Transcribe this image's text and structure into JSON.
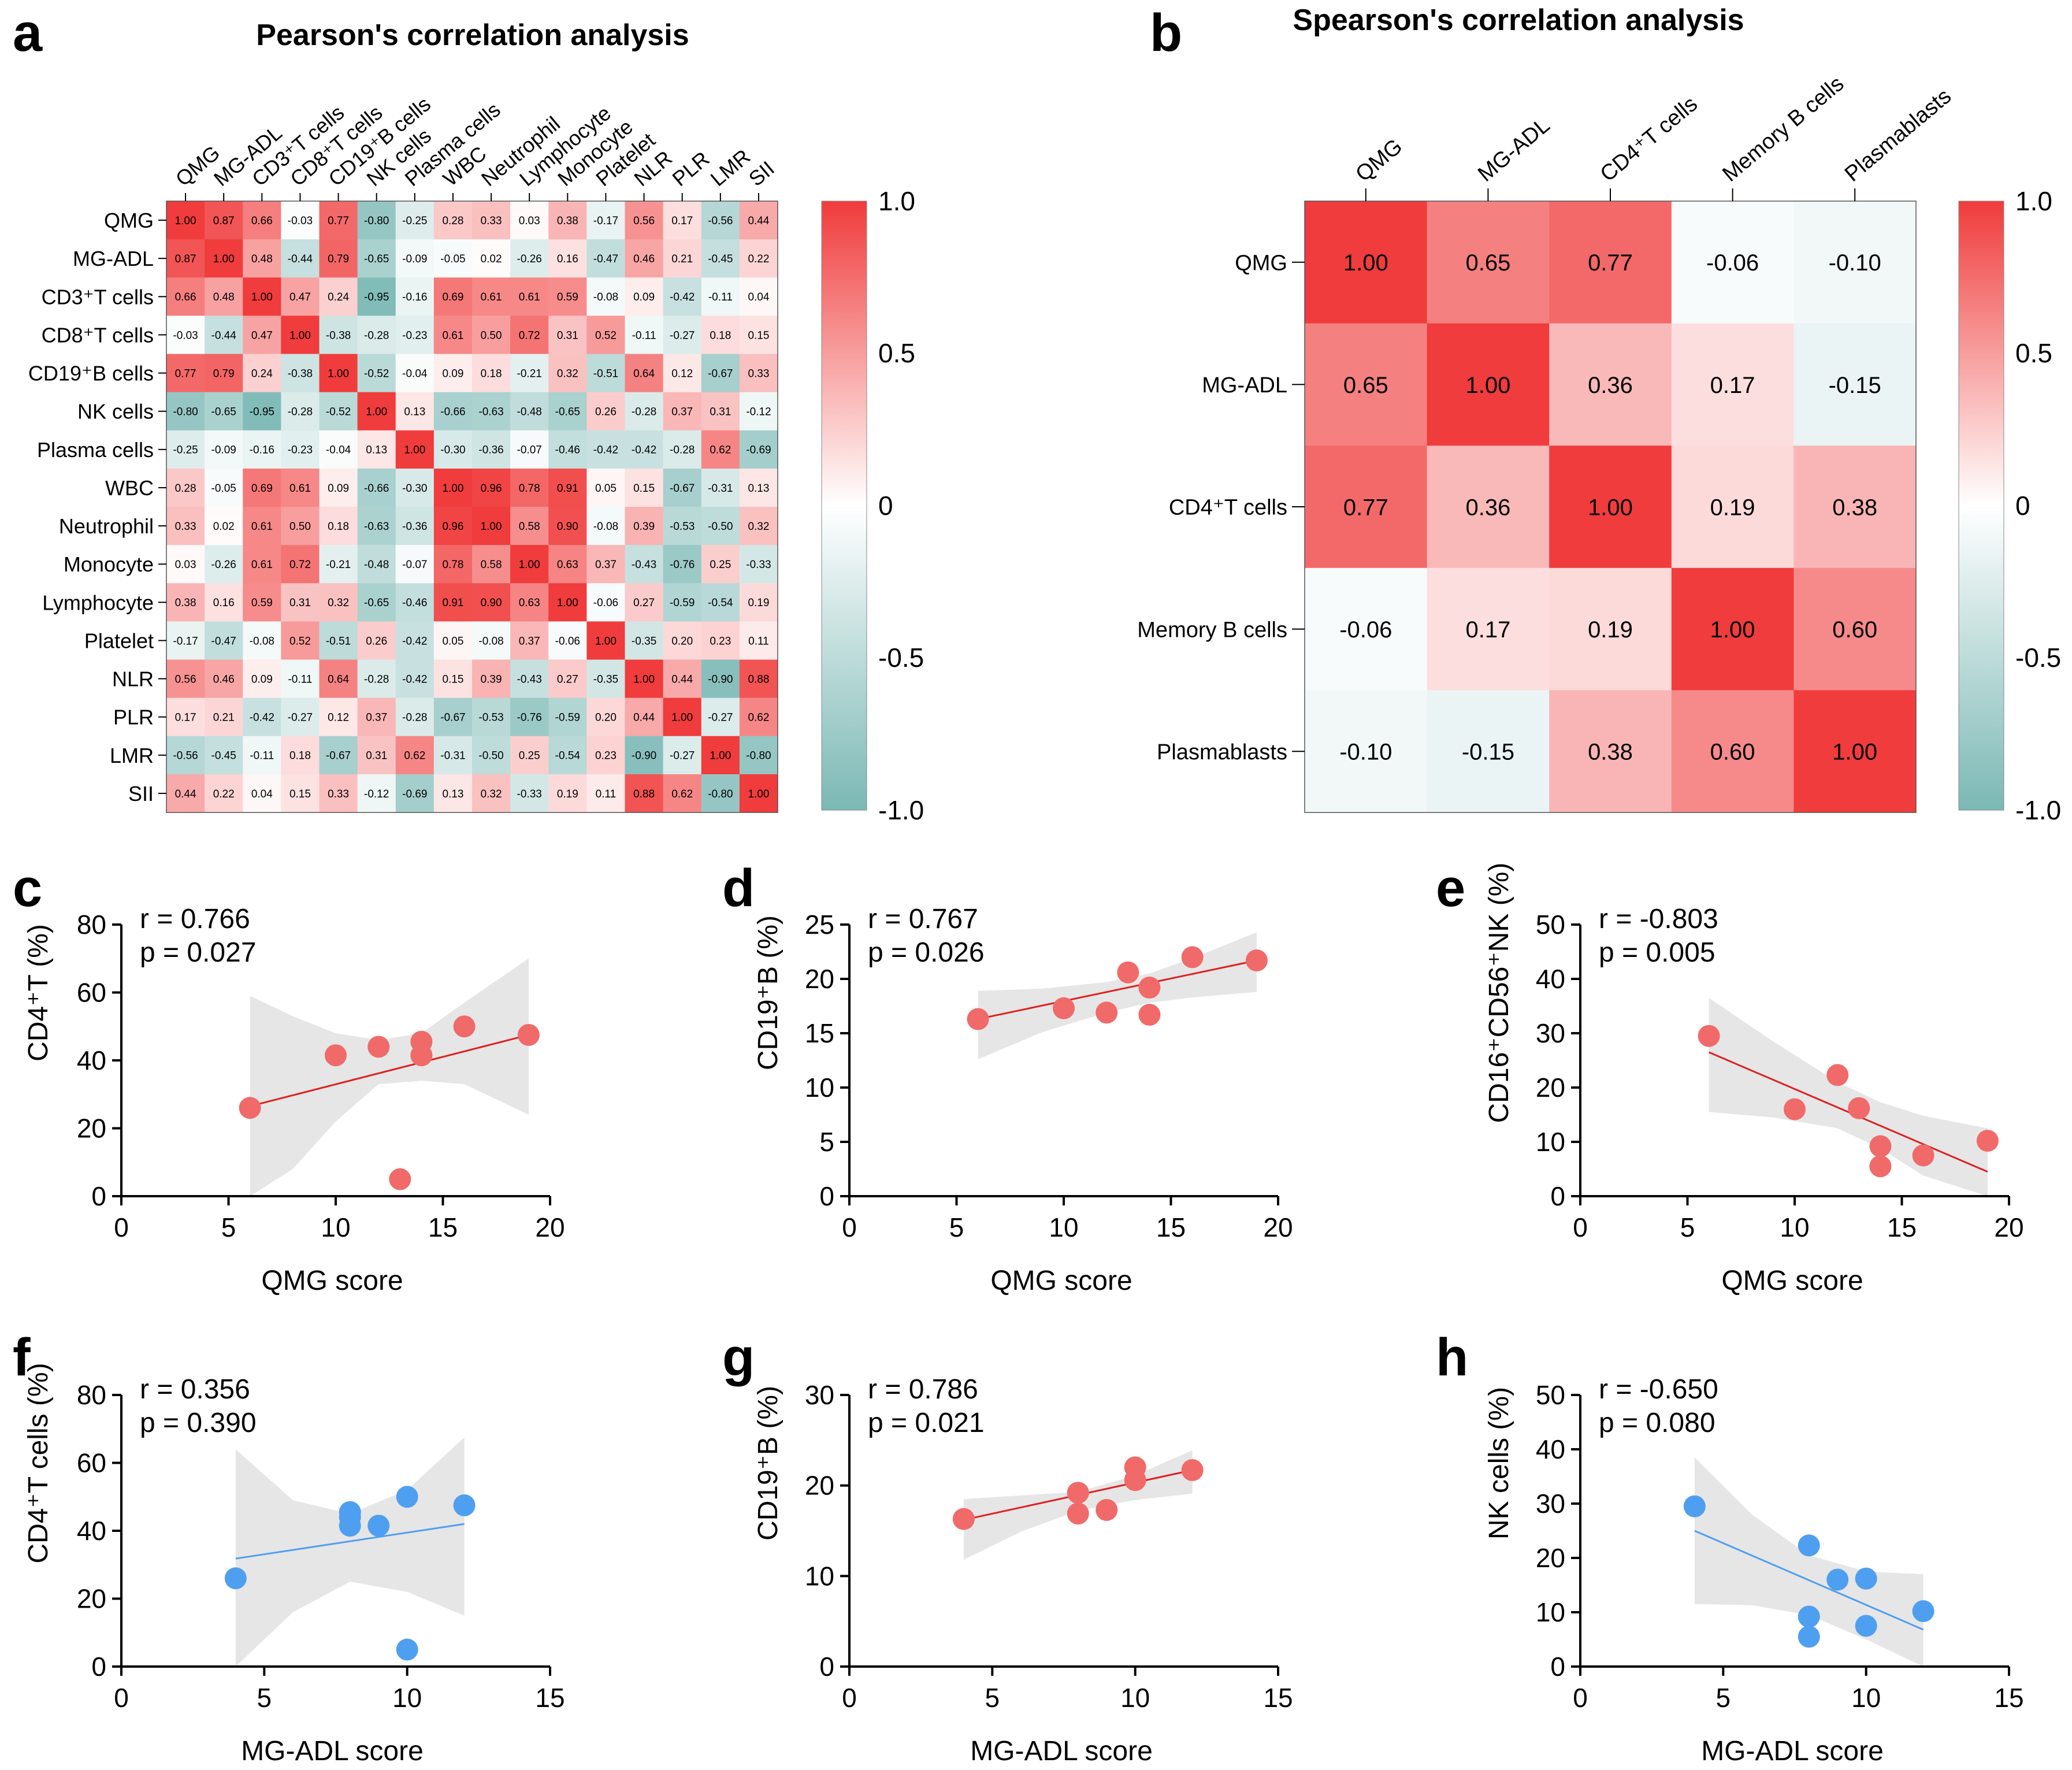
{
  "colors": {
    "pos": "#f03c3c",
    "neg": "#7bb8b4",
    "neutral": "#ffffff",
    "red_point": "#f06a6a",
    "red_line": "#e02020",
    "blue_point": "#4f9ff0",
    "blue_line": "#4f9ff0",
    "band": "#e6e6e6"
  },
  "panels": {
    "a": {
      "letter": "a",
      "title": "Pearson's correlation analysis",
      "colorbar_ticks": [
        "1.0",
        "0.5",
        "0",
        "-0.5",
        "-1.0"
      ],
      "column_labels": [
        "QMG",
        "MG-ADL",
        "CD3⁺T cells",
        "CD8⁺T cells",
        "CD19⁺B cells",
        "NK cells",
        "Plasma cells",
        "WBC",
        "Neutrophil",
        "Lymphocyte",
        "Monocyte",
        "Platelet",
        "NLR",
        "PLR",
        "LMR",
        "SII"
      ],
      "row_labels": [
        "QMG",
        "MG-ADL",
        "CD3⁺T cells",
        "CD8⁺T cells",
        "CD19⁺B cells",
        "NK cells",
        "Plasma cells",
        "WBC",
        "Neutrophil",
        "Monocyte",
        "Lymphocyte",
        "Platelet",
        "NLR",
        "PLR",
        "LMR",
        "SII"
      ]
    },
    "b": {
      "letter": "b",
      "title": "Spearson's correlation analysis",
      "colorbar_ticks": [
        "1.0",
        "0.5",
        "0",
        "-0.5",
        "-1.0"
      ],
      "column_labels": [
        "QMG",
        "MG-ADL",
        "CD4⁺T cells",
        "Memory B cells",
        "Plasmablasts"
      ],
      "row_labels": [
        "QMG",
        "MG-ADL",
        "CD4⁺T cells",
        "Memory B cells",
        "Plasmablasts"
      ]
    },
    "c": {
      "letter": "c",
      "r_text": "r = 0.766",
      "p_text": "p = 0.027",
      "xlabel": "QMG score",
      "ylabel": "CD4⁺T (%)"
    },
    "d": {
      "letter": "d",
      "r_text": "r = 0.767",
      "p_text": "p = 0.026",
      "xlabel": "QMG score",
      "ylabel": "CD19⁺B (%)"
    },
    "e": {
      "letter": "e",
      "r_text": "r = -0.803",
      "p_text": "p = 0.005",
      "xlabel": "QMG score",
      "ylabel": "CD16⁺CD56⁺NK (%)"
    },
    "f": {
      "letter": "f",
      "r_text": "r = 0.356",
      "p_text": "p = 0.390",
      "xlabel": "MG-ADL score",
      "ylabel": "CD4⁺T cells (%)"
    },
    "g": {
      "letter": "g",
      "r_text": "r = 0.786",
      "p_text": "p = 0.021",
      "xlabel": "MG-ADL score",
      "ylabel": "CD19⁺B (%)"
    },
    "h": {
      "letter": "h",
      "r_text": "r = -0.650",
      "p_text": "p = 0.080",
      "xlabel": "MG-ADL score",
      "ylabel": "NK cells (%)"
    }
  },
  "chart_data": [
    {
      "panel": "a",
      "type": "heatmap",
      "title": "Pearson's correlation analysis",
      "color_range": [
        -1.0,
        1.0
      ],
      "x": [
        "QMG",
        "MG-ADL",
        "CD3⁺T cells",
        "CD8⁺T cells",
        "CD19⁺B cells",
        "NK cells",
        "Plasma cells",
        "WBC",
        "Neutrophil",
        "Lymphocyte",
        "Monocyte",
        "Platelet",
        "NLR",
        "PLR",
        "LMR",
        "SII"
      ],
      "y": [
        "QMG",
        "MG-ADL",
        "CD3⁺T cells",
        "CD8⁺T cells",
        "CD19⁺B cells",
        "NK cells",
        "Plasma cells",
        "WBC",
        "Neutrophil",
        "Monocyte",
        "Lymphocyte",
        "Platelet",
        "NLR",
        "PLR",
        "LMR",
        "SII"
      ],
      "values": [
        [
          1.0,
          0.87,
          0.66,
          -0.03,
          0.77,
          -0.8,
          -0.25,
          0.28,
          0.33,
          0.03,
          0.38,
          -0.17,
          0.56,
          0.17,
          -0.56,
          0.44
        ],
        [
          0.87,
          1.0,
          0.48,
          -0.44,
          0.79,
          -0.65,
          -0.09,
          -0.05,
          0.02,
          -0.26,
          0.16,
          -0.47,
          0.46,
          0.21,
          -0.45,
          0.22
        ],
        [
          0.66,
          0.48,
          1.0,
          0.47,
          0.24,
          -0.95,
          -0.16,
          0.69,
          0.61,
          0.61,
          0.59,
          -0.08,
          0.09,
          -0.42,
          -0.11,
          0.04
        ],
        [
          -0.03,
          -0.44,
          0.47,
          1.0,
          -0.38,
          -0.28,
          -0.23,
          0.61,
          0.5,
          0.72,
          0.31,
          0.52,
          -0.11,
          -0.27,
          0.18,
          0.15
        ],
        [
          0.77,
          0.79,
          0.24,
          -0.38,
          1.0,
          -0.52,
          -0.04,
          0.09,
          0.18,
          -0.21,
          0.32,
          -0.51,
          0.64,
          0.12,
          -0.67,
          0.33
        ],
        [
          -0.8,
          -0.65,
          -0.95,
          -0.28,
          -0.52,
          1.0,
          0.13,
          -0.66,
          -0.63,
          -0.48,
          -0.65,
          0.26,
          -0.28,
          0.37,
          0.31,
          -0.12
        ],
        [
          -0.25,
          -0.09,
          -0.16,
          -0.23,
          -0.04,
          0.13,
          1.0,
          -0.3,
          -0.36,
          -0.07,
          -0.46,
          -0.42,
          -0.42,
          -0.28,
          0.62,
          -0.69
        ],
        [
          0.28,
          -0.05,
          0.69,
          0.61,
          0.09,
          -0.66,
          -0.3,
          1.0,
          0.96,
          0.78,
          0.91,
          0.05,
          0.15,
          -0.67,
          -0.31,
          0.13
        ],
        [
          0.33,
          0.02,
          0.61,
          0.5,
          0.18,
          -0.63,
          -0.36,
          0.96,
          1.0,
          0.58,
          0.9,
          -0.08,
          0.39,
          -0.53,
          -0.5,
          0.32
        ],
        [
          0.03,
          -0.26,
          0.61,
          0.72,
          -0.21,
          -0.48,
          -0.07,
          0.78,
          0.58,
          1.0,
          0.63,
          0.37,
          -0.43,
          -0.76,
          0.25,
          -0.33
        ],
        [
          0.38,
          0.16,
          0.59,
          0.31,
          0.32,
          -0.65,
          -0.46,
          0.91,
          0.9,
          0.63,
          1.0,
          -0.06,
          0.27,
          -0.59,
          -0.54,
          0.19
        ],
        [
          -0.17,
          -0.47,
          -0.08,
          0.52,
          -0.51,
          0.26,
          -0.42,
          0.05,
          -0.08,
          0.37,
          -0.06,
          1.0,
          -0.35,
          0.2,
          0.23,
          0.11
        ],
        [
          0.56,
          0.46,
          0.09,
          -0.11,
          0.64,
          -0.28,
          -0.42,
          0.15,
          0.39,
          -0.43,
          0.27,
          -0.35,
          1.0,
          0.44,
          -0.9,
          0.88
        ],
        [
          0.17,
          0.21,
          -0.42,
          -0.27,
          0.12,
          0.37,
          -0.28,
          -0.67,
          -0.53,
          -0.76,
          -0.59,
          0.2,
          0.44,
          1.0,
          -0.27,
          0.62
        ],
        [
          -0.56,
          -0.45,
          -0.11,
          0.18,
          -0.67,
          0.31,
          0.62,
          -0.31,
          -0.5,
          0.25,
          -0.54,
          0.23,
          -0.9,
          -0.27,
          1.0,
          -0.8
        ],
        [
          0.44,
          0.22,
          0.04,
          0.15,
          0.33,
          -0.12,
          -0.69,
          0.13,
          0.32,
          -0.33,
          0.19,
          0.11,
          0.88,
          0.62,
          -0.8,
          1.0
        ]
      ]
    },
    {
      "panel": "b",
      "type": "heatmap",
      "title": "Spearson's correlation analysis",
      "color_range": [
        -1.0,
        1.0
      ],
      "x": [
        "QMG",
        "MG-ADL",
        "CD4⁺T cells",
        "Memory B cells",
        "Plasmablasts"
      ],
      "y": [
        "QMG",
        "MG-ADL",
        "CD4⁺T cells",
        "Memory B cells",
        "Plasmablasts"
      ],
      "values": [
        [
          1.0,
          0.65,
          0.77,
          -0.06,
          -0.1
        ],
        [
          0.65,
          1.0,
          0.36,
          0.17,
          -0.15
        ],
        [
          0.77,
          0.36,
          1.0,
          0.19,
          0.38
        ],
        [
          -0.06,
          0.17,
          0.19,
          1.0,
          0.6
        ],
        [
          -0.1,
          -0.15,
          0.38,
          0.6,
          1.0
        ]
      ]
    },
    {
      "panel": "c",
      "type": "scatter",
      "xlabel": "QMG score",
      "ylabel": "CD4⁺T (%)",
      "xlim": [
        0,
        20
      ],
      "ylim": [
        0,
        80
      ],
      "xticks": [
        0,
        5,
        10,
        15,
        20
      ],
      "yticks": [
        0,
        20,
        40,
        60,
        80
      ],
      "x": [
        6,
        10,
        12,
        13,
        14,
        14,
        16,
        19
      ],
      "y": [
        26,
        41.5,
        44,
        5,
        45.5,
        41.5,
        50,
        47.5
      ],
      "fit_line": [
        [
          6,
          26.5
        ],
        [
          19,
          47.5
        ]
      ],
      "band_upper": [
        [
          6,
          59
        ],
        [
          8,
          53
        ],
        [
          10,
          48
        ],
        [
          12,
          46
        ],
        [
          14,
          48
        ],
        [
          16,
          57
        ],
        [
          19,
          70
        ]
      ],
      "band_lower": [
        [
          6,
          0
        ],
        [
          8,
          8
        ],
        [
          10,
          22
        ],
        [
          12,
          33
        ],
        [
          14,
          34
        ],
        [
          16,
          33
        ],
        [
          19,
          24
        ]
      ],
      "point_color": "red"
    },
    {
      "panel": "d",
      "type": "scatter",
      "xlabel": "QMG score",
      "ylabel": "CD19⁺B (%)",
      "xlim": [
        0,
        20
      ],
      "ylim": [
        0,
        25
      ],
      "xticks": [
        0,
        5,
        10,
        15,
        20
      ],
      "yticks": [
        0,
        5,
        10,
        15,
        20,
        25
      ],
      "x": [
        6,
        10,
        12,
        13,
        14,
        14,
        16,
        19
      ],
      "y": [
        16.3,
        17.3,
        16.9,
        20.6,
        16.7,
        19.2,
        22,
        21.7
      ],
      "fit_line": [
        [
          6,
          16.3
        ],
        [
          19,
          21.7
        ]
      ],
      "band_upper": [
        [
          6,
          18.9
        ],
        [
          9,
          19.1
        ],
        [
          12,
          19.7
        ],
        [
          14,
          20.5
        ],
        [
          16,
          21.9
        ],
        [
          19,
          24.3
        ]
      ],
      "band_lower": [
        [
          6,
          12.6
        ],
        [
          9,
          15.1
        ],
        [
          12,
          16.9
        ],
        [
          14,
          17.8
        ],
        [
          16,
          18.3
        ],
        [
          19,
          18.8
        ]
      ],
      "point_color": "red"
    },
    {
      "panel": "e",
      "type": "scatter",
      "xlabel": "QMG score",
      "ylabel": "CD16⁺CD56⁺NK (%)",
      "xlim": [
        0,
        20
      ],
      "ylim": [
        0,
        50
      ],
      "xticks": [
        0,
        5,
        10,
        15,
        20
      ],
      "yticks": [
        0,
        10,
        20,
        30,
        40,
        50
      ],
      "x": [
        6,
        10,
        12,
        13,
        14,
        14,
        16,
        19
      ],
      "y": [
        29.5,
        16,
        22.3,
        16.2,
        9.2,
        5.5,
        7.5,
        10.2
      ],
      "fit_line": [
        [
          6,
          26.5
        ],
        [
          19,
          4.5
        ]
      ],
      "band_upper": [
        [
          6,
          36.5
        ],
        [
          9,
          28.5
        ],
        [
          12,
          21
        ],
        [
          14,
          17.3
        ],
        [
          16,
          14.8
        ],
        [
          19,
          12.5
        ]
      ],
      "band_lower": [
        [
          6,
          15.5
        ],
        [
          9,
          14.5
        ],
        [
          12,
          12.5
        ],
        [
          14,
          8.8
        ],
        [
          16,
          3.8
        ],
        [
          19,
          0
        ]
      ],
      "point_color": "red"
    },
    {
      "panel": "f",
      "type": "scatter",
      "xlabel": "MG-ADL score",
      "ylabel": "CD4⁺T cells (%)",
      "xlim": [
        0,
        15
      ],
      "ylim": [
        0,
        80
      ],
      "xticks": [
        0,
        5,
        10,
        15
      ],
      "yticks": [
        0,
        20,
        40,
        60,
        80
      ],
      "x": [
        4,
        8,
        8,
        8,
        9,
        10,
        10,
        12
      ],
      "y": [
        26,
        45.5,
        44,
        41.5,
        41.5,
        50,
        5,
        47.5
      ],
      "fit_line": [
        [
          4,
          31.8
        ],
        [
          12,
          42
        ]
      ],
      "band_upper": [
        [
          4,
          64
        ],
        [
          6,
          49
        ],
        [
          8,
          45
        ],
        [
          10,
          52
        ],
        [
          12,
          67.5
        ]
      ],
      "band_lower": [
        [
          4,
          0
        ],
        [
          6,
          16
        ],
        [
          8,
          25
        ],
        [
          10,
          22
        ],
        [
          12,
          15
        ]
      ],
      "point_color": "blue"
    },
    {
      "panel": "g",
      "type": "scatter",
      "xlabel": "MG-ADL score",
      "ylabel": "CD19⁺B (%)",
      "xlim": [
        0,
        15
      ],
      "ylim": [
        0,
        30
      ],
      "xticks": [
        0,
        5,
        10,
        15
      ],
      "yticks": [
        0,
        10,
        20,
        30
      ],
      "x": [
        4,
        8,
        8,
        9,
        10,
        10,
        12
      ],
      "y": [
        16.3,
        19.2,
        16.9,
        17.3,
        22,
        20.6,
        21.7
      ],
      "fit_line": [
        [
          4,
          16.2
        ],
        [
          12,
          21.7
        ]
      ],
      "band_upper": [
        [
          4,
          18.5
        ],
        [
          6,
          18.9
        ],
        [
          8,
          19.3
        ],
        [
          10,
          21.1
        ],
        [
          12,
          23.9
        ]
      ],
      "band_lower": [
        [
          4,
          11.8
        ],
        [
          6,
          14.9
        ],
        [
          8,
          17.2
        ],
        [
          10,
          18.4
        ],
        [
          12,
          19.1
        ]
      ],
      "point_color": "red"
    },
    {
      "panel": "h",
      "type": "scatter",
      "xlabel": "MG-ADL score",
      "ylabel": "NK cells (%)",
      "xlim": [
        0,
        15
      ],
      "ylim": [
        0,
        50
      ],
      "xticks": [
        0,
        5,
        10,
        15
      ],
      "yticks": [
        0,
        10,
        20,
        30,
        40,
        50
      ],
      "x": [
        4,
        8,
        8,
        8,
        9,
        10,
        10,
        12
      ],
      "y": [
        29.5,
        22.3,
        9.2,
        5.5,
        16,
        16.2,
        7.5,
        10.2
      ],
      "fit_line": [
        [
          4,
          25
        ],
        [
          12,
          6.8
        ]
      ],
      "band_upper": [
        [
          4,
          38.5
        ],
        [
          6,
          28
        ],
        [
          8,
          20.5
        ],
        [
          10,
          17.5
        ],
        [
          12,
          17
        ]
      ],
      "band_lower": [
        [
          4,
          11.5
        ],
        [
          6,
          11.3
        ],
        [
          8,
          9.5
        ],
        [
          10,
          5
        ],
        [
          12,
          0
        ]
      ],
      "point_color": "blue"
    }
  ]
}
